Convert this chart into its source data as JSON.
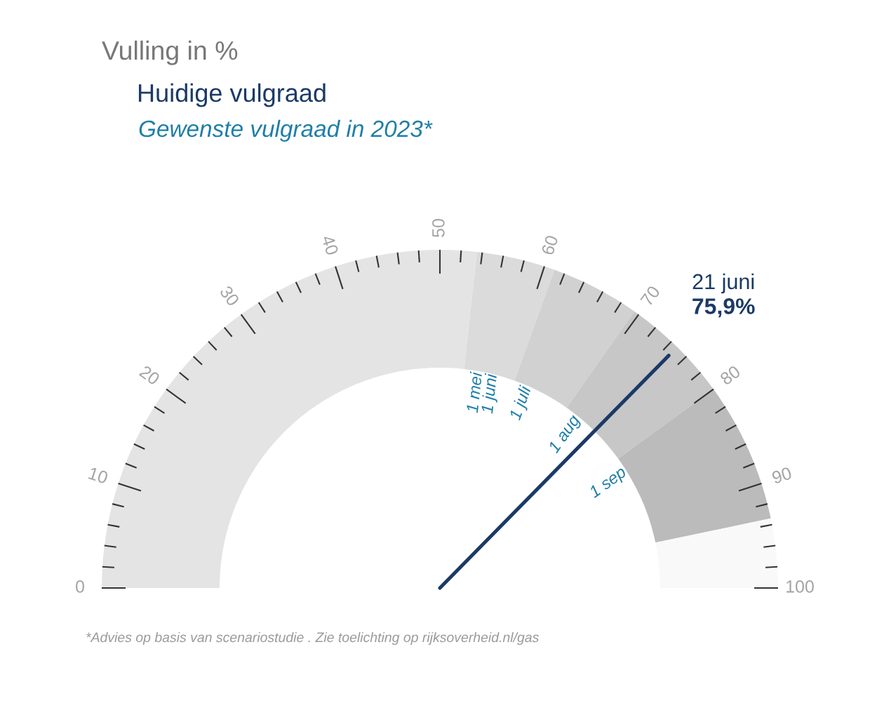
{
  "chart_data": {
    "type": "donut",
    "title": "Vulling in %",
    "subtitle": "Huidige vulgraad",
    "categories": [
      null,
      "1 mei\n1 juni",
      "1 juli",
      "1 aug",
      "1 sep",
      null
    ],
    "values": [
      53.5,
      7.5,
      8.5,
      10.5,
      13.4,
      6.6
    ],
    "colors": [
      "#e4e4e4",
      "#dbdbdb",
      "#d1d1d1",
      "#c7c7c7",
      "#bbbbbb",
      "#f9f9f9"
    ],
    "needle": "1 aug",
    "annotations": [
      "Gewenste vulgraad in 2023*",
      "*Advies op basis van scenariostudie . Zie toelichting op rijksoverheid.nl/gas",
      "21 juni",
      "75,9%",
      "0",
      "10",
      "20",
      "30",
      "40",
      "50",
      "60",
      "70",
      "80",
      "90",
      "100"
    ]
  }
}
